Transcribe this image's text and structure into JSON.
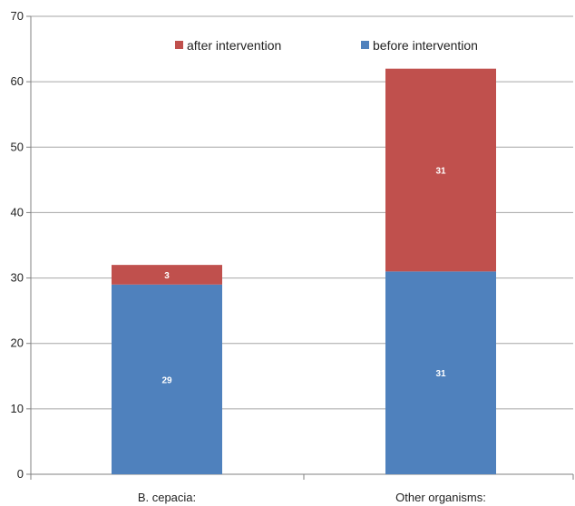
{
  "chart_data": {
    "type": "bar",
    "stacked": true,
    "categories": [
      "B. cepacia:",
      "Other organisms:"
    ],
    "series": [
      {
        "name": "before intervention",
        "values": [
          29,
          31
        ],
        "color": "#4f81bd"
      },
      {
        "name": "after intervention",
        "values": [
          3,
          31
        ],
        "color": "#c0504d"
      }
    ],
    "ylim": [
      0,
      70
    ],
    "yticks": [
      0,
      10,
      20,
      30,
      40,
      50,
      60,
      70
    ],
    "grid": true,
    "legend": "top",
    "legend_order": [
      "after intervention",
      "before intervention"
    ],
    "title": "",
    "xlabel": "",
    "ylabel": ""
  }
}
